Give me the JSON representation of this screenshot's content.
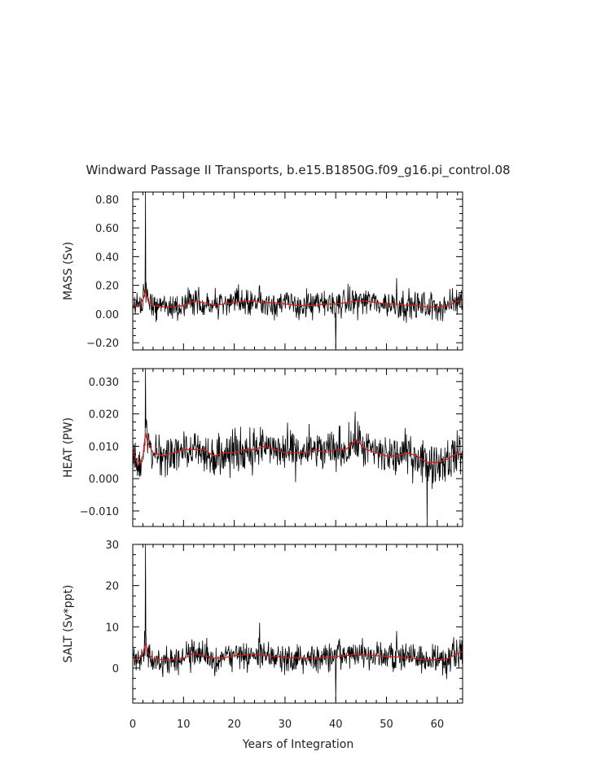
{
  "title": "Windward Passage II Transports, b.e15.B1850G.f09_g16.pi_control.08",
  "xlabel": "Years of Integration",
  "colors": {
    "raw": "#000000",
    "smoothed": "#d62020",
    "frame": "#000000"
  },
  "chart_data": [
    {
      "type": "line",
      "ylabel": "MASS (Sv)",
      "xlim": [
        0,
        65
      ],
      "ylim": [
        -0.25,
        0.85
      ],
      "xticks": [
        0,
        10,
        20,
        30,
        40,
        50,
        60
      ],
      "yticks": [
        -0.2,
        0.0,
        0.2,
        0.4,
        0.6,
        0.8
      ],
      "ytick_labels": [
        "−0.20",
        "0.00",
        "0.20",
        "0.40",
        "0.60",
        "0.80"
      ],
      "series": [
        {
          "style": "raw",
          "x": [
            0,
            1,
            2,
            2.5,
            3,
            4,
            5,
            6,
            8,
            10,
            12,
            14,
            16,
            18,
            20,
            22,
            24,
            25,
            26,
            28,
            30,
            32,
            34,
            36,
            38,
            40,
            42,
            44,
            46,
            48,
            50,
            52,
            54,
            56,
            58,
            60,
            62,
            64,
            65
          ],
          "y": [
            0.06,
            0.05,
            0.08,
            0.85,
            0.12,
            0.05,
            0.04,
            0.06,
            0.05,
            0.06,
            0.1,
            0.08,
            0.06,
            0.07,
            0.08,
            0.09,
            0.1,
            0.2,
            0.09,
            0.08,
            0.07,
            0.08,
            0.06,
            0.05,
            0.06,
            -0.24,
            0.08,
            0.09,
            0.1,
            0.08,
            0.07,
            0.25,
            0.08,
            0.06,
            0.05,
            0.07,
            0.06,
            0.1,
            0.08
          ],
          "amplitude": 0.09
        },
        {
          "style": "smoothed",
          "x": [
            0,
            1,
            2,
            2.5,
            3,
            4,
            6,
            8,
            10,
            12,
            14,
            16,
            18,
            20,
            22,
            24,
            26,
            28,
            30,
            32,
            34,
            36,
            38,
            40,
            42,
            44,
            46,
            48,
            50,
            52,
            54,
            56,
            58,
            60,
            62,
            64,
            65
          ],
          "y": [
            0.06,
            0.05,
            0.1,
            0.16,
            0.09,
            0.06,
            0.05,
            0.05,
            0.06,
            0.09,
            0.08,
            0.06,
            0.07,
            0.08,
            0.09,
            0.09,
            0.08,
            0.08,
            0.07,
            0.06,
            0.06,
            0.06,
            0.07,
            0.07,
            0.08,
            0.09,
            0.09,
            0.08,
            0.07,
            0.07,
            0.06,
            0.06,
            0.05,
            0.05,
            0.06,
            0.09,
            0.1
          ]
        }
      ]
    },
    {
      "type": "line",
      "ylabel": "HEAT (PW)",
      "xlim": [
        0,
        65
      ],
      "ylim": [
        -0.0148,
        0.034
      ],
      "xticks": [
        0,
        10,
        20,
        30,
        40,
        50,
        60
      ],
      "yticks": [
        -0.01,
        0.0,
        0.01,
        0.02,
        0.03
      ],
      "ytick_labels": [
        "−0.010",
        "0.000",
        "0.010",
        "0.020",
        "0.030"
      ],
      "series": [
        {
          "style": "raw",
          "x": [
            0,
            1,
            2,
            2.5,
            3,
            4,
            5,
            6,
            8,
            10,
            12,
            14,
            16,
            18,
            20,
            22,
            24,
            26,
            28,
            30,
            32,
            34,
            36,
            38,
            40,
            42,
            44,
            46,
            48,
            50,
            52,
            54,
            56,
            58,
            60,
            62,
            64,
            65
          ],
          "y": [
            0.008,
            0.004,
            0.006,
            0.034,
            0.012,
            0.008,
            0.007,
            0.009,
            0.008,
            0.009,
            0.009,
            0.008,
            0.008,
            0.007,
            0.009,
            0.009,
            0.01,
            0.009,
            0.008,
            0.008,
            0.009,
            0.008,
            0.008,
            0.009,
            0.009,
            0.008,
            0.012,
            0.009,
            0.008,
            0.008,
            0.007,
            0.008,
            0.007,
            -0.014,
            0.006,
            0.007,
            0.008,
            0.006
          ],
          "amplitude": 0.006
        },
        {
          "style": "smoothed",
          "x": [
            0,
            1,
            2,
            2.5,
            3,
            4,
            6,
            8,
            10,
            12,
            14,
            16,
            18,
            20,
            22,
            24,
            26,
            28,
            30,
            32,
            34,
            36,
            38,
            40,
            42,
            44,
            46,
            48,
            50,
            52,
            54,
            56,
            58,
            60,
            62,
            64,
            65
          ],
          "y": [
            0.009,
            0.004,
            0.007,
            0.014,
            0.011,
            0.008,
            0.007,
            0.008,
            0.009,
            0.009,
            0.009,
            0.007,
            0.008,
            0.008,
            0.009,
            0.009,
            0.01,
            0.009,
            0.008,
            0.008,
            0.008,
            0.009,
            0.008,
            0.009,
            0.009,
            0.012,
            0.009,
            0.008,
            0.007,
            0.007,
            0.008,
            0.007,
            0.005,
            0.005,
            0.006,
            0.008,
            0.007
          ]
        }
      ]
    },
    {
      "type": "line",
      "ylabel": "SALT (Sv*ppt)",
      "xlim": [
        0,
        65
      ],
      "ylim": [
        -8.5,
        30
      ],
      "xticks": [
        0,
        10,
        20,
        30,
        40,
        50,
        60
      ],
      "yticks": [
        0,
        10,
        20,
        30
      ],
      "ytick_labels": [
        "0",
        "10",
        "20",
        "30"
      ],
      "series": [
        {
          "style": "raw",
          "x": [
            0,
            1,
            2,
            2.5,
            3,
            4,
            5,
            6,
            8,
            10,
            12,
            14,
            16,
            18,
            20,
            22,
            24,
            25,
            26,
            28,
            30,
            32,
            34,
            36,
            38,
            40,
            42,
            44,
            46,
            48,
            50,
            52,
            54,
            56,
            58,
            60,
            62,
            64,
            65
          ],
          "y": [
            2.5,
            2,
            3,
            30,
            5,
            2,
            1.5,
            2,
            2,
            2.5,
            4,
            3,
            2.5,
            2.5,
            3,
            3,
            3.5,
            11,
            3,
            3,
            2.5,
            3,
            2.5,
            2,
            2.5,
            -8,
            3,
            3.5,
            3.5,
            3,
            3,
            9,
            3,
            2,
            1.5,
            2.5,
            2,
            4,
            3
          ],
          "amplitude": 3.2
        },
        {
          "style": "smoothed",
          "x": [
            0,
            1,
            2,
            2.5,
            3,
            4,
            6,
            8,
            10,
            12,
            14,
            16,
            18,
            20,
            22,
            24,
            26,
            28,
            30,
            32,
            34,
            36,
            38,
            40,
            42,
            44,
            46,
            48,
            50,
            52,
            54,
            56,
            58,
            60,
            62,
            64,
            65
          ],
          "y": [
            2.5,
            2,
            3.5,
            6,
            3.5,
            2.2,
            2,
            2,
            2.3,
            3.5,
            3,
            2.4,
            2.5,
            3,
            3.2,
            3.3,
            3,
            2.8,
            2.5,
            2.5,
            2.4,
            2.3,
            2.6,
            2.8,
            3,
            3.4,
            3.2,
            3,
            2.8,
            2.7,
            2.5,
            2.2,
            2,
            2,
            2.3,
            3.5,
            4
          ]
        }
      ]
    }
  ]
}
